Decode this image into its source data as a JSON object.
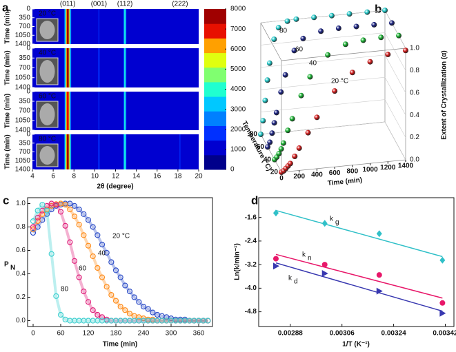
{
  "chart_data": [
    {
      "type": "heatmap",
      "panel": "a",
      "xlabel": "2θ (degree)",
      "ylabel": "Time (min)",
      "xlim": [
        4,
        20
      ],
      "xticks": [
        4,
        6,
        8,
        10,
        12,
        14,
        16,
        18,
        20
      ],
      "ylim": [
        0,
        1400
      ],
      "yticks": [
        0,
        350,
        700,
        1050,
        1400
      ],
      "peaks": {
        "positions": [
          7.4,
          10.4,
          12.9,
          18.2
        ],
        "labels": [
          "(011)",
          "(001)",
          "(112)",
          "(222)"
        ]
      },
      "background": 900,
      "strips": [
        {
          "name": "20 °C",
          "values": [
            7400,
            1500,
            4200,
            1300
          ]
        },
        {
          "name": "40 °C",
          "values": [
            7600,
            1600,
            4000,
            1400
          ]
        },
        {
          "name": "60 °C",
          "values": [
            7200,
            1500,
            3800,
            1300
          ]
        },
        {
          "name": "80 °C",
          "values": [
            7800,
            1700,
            4300,
            1500
          ]
        }
      ],
      "colorbar": {
        "lim": [
          0,
          8000
        ],
        "ticks": [
          0,
          1000,
          2000,
          3000,
          4000,
          5000,
          6000,
          7000,
          8000
        ],
        "colors": [
          "#00008b",
          "#0000d0",
          "#0030ff",
          "#0080ff",
          "#00c8ff",
          "#20ffd0",
          "#80ff70",
          "#e0ff10",
          "#ffa000",
          "#e81000",
          "#a00000"
        ]
      }
    },
    {
      "type": "scatter3d",
      "panel": "b",
      "xlabel": "Time (min)",
      "ylabel": "Temperature (°C)",
      "zlabel": "Extent of Crystallization (α)",
      "xlim": [
        0,
        1400
      ],
      "xticks": [
        0,
        200,
        400,
        600,
        800,
        1000,
        1200,
        1400
      ],
      "ylim": [
        20,
        80
      ],
      "yticks": [
        20,
        40,
        60,
        80
      ],
      "zlim": [
        0,
        1
      ],
      "zticks": [
        {
          "value": 0,
          "label": "0.0"
        },
        0.2,
        0.4,
        0.6,
        0.8,
        {
          "value": 1,
          "label": "1.0"
        }
      ],
      "x": [
        0,
        25,
        50,
        75,
        100,
        150,
        200,
        300,
        400,
        600,
        800,
        1000,
        1200,
        1400
      ],
      "series": [
        {
          "name": "20 °C",
          "y": 20,
          "color": "#d01818",
          "values": [
            0,
            0.01,
            0.03,
            0.05,
            0.07,
            0.13,
            0.2,
            0.33,
            0.46,
            0.68,
            0.83,
            0.91,
            0.96,
            0.98
          ]
        },
        {
          "name": "40",
          "y": 40,
          "color": "#18b030",
          "values": [
            0,
            0.02,
            0.05,
            0.09,
            0.14,
            0.25,
            0.35,
            0.55,
            0.71,
            0.89,
            0.97,
            0.99,
            1,
            1
          ]
        },
        {
          "name": "60",
          "y": 60,
          "color": "#182080",
          "values": [
            0,
            0.04,
            0.12,
            0.21,
            0.3,
            0.48,
            0.63,
            0.84,
            0.94,
            0.99,
            1,
            1,
            1,
            1
          ]
        },
        {
          "name": "80",
          "y": 80,
          "color": "#20c8c8",
          "values": [
            0,
            0.12,
            0.3,
            0.48,
            0.63,
            0.84,
            0.94,
            0.99,
            1,
            1,
            1,
            1,
            1,
            1
          ]
        }
      ]
    },
    {
      "type": "line",
      "panel": "c",
      "xlabel": "Time (min)",
      "ylabel": "P",
      "ylabel_sub": "N",
      "xlim": [
        -12,
        390
      ],
      "xticks": [
        0,
        60,
        120,
        180,
        240,
        300,
        360
      ],
      "ylim": [
        -0.05,
        1.05
      ],
      "yticks": [
        {
          "value": 0,
          "label": "0.0"
        },
        0.2,
        0.4,
        0.6,
        0.8,
        {
          "value": 1,
          "label": "1.0"
        }
      ],
      "x": [
        0,
        10,
        20,
        30,
        40,
        50,
        60,
        70,
        80,
        90,
        100,
        110,
        120,
        130,
        140,
        150,
        160,
        170,
        180,
        190,
        200,
        210,
        220,
        230,
        240,
        250,
        260,
        270,
        280,
        290,
        300,
        310,
        320,
        330,
        340,
        350,
        360,
        370,
        380
      ],
      "series": [
        {
          "name": "20 °C",
          "color": "#3050c8",
          "values": [
            0.75,
            0.8,
            0.86,
            0.91,
            0.95,
            0.98,
            0.99,
            1.0,
            1.0,
            0.98,
            0.95,
            0.91,
            0.86,
            0.8,
            0.73,
            0.65,
            0.58,
            0.5,
            0.43,
            0.37,
            0.3,
            0.25,
            0.2,
            0.16,
            0.12,
            0.1,
            0.07,
            0.05,
            0.04,
            0.03,
            0.02,
            0.01,
            0.01,
            0.01,
            0,
            0,
            0,
            0,
            0
          ]
        },
        {
          "name": "40",
          "color": "#ff8c1a",
          "values": [
            0.78,
            0.85,
            0.91,
            0.95,
            0.98,
            0.995,
            1.0,
            0.99,
            0.95,
            0.89,
            0.82,
            0.73,
            0.64,
            0.55,
            0.45,
            0.37,
            0.29,
            0.22,
            0.17,
            0.12,
            0.09,
            0.06,
            0.04,
            0.03,
            0.02,
            0.01,
            0.01,
            0,
            0,
            0,
            0,
            0,
            0,
            0,
            0,
            0,
            0,
            0,
            0
          ]
        },
        {
          "name": "60",
          "color": "#e0207a",
          "values": [
            0.8,
            0.88,
            0.94,
            0.98,
            1.0,
            0.99,
            0.93,
            0.81,
            0.67,
            0.51,
            0.37,
            0.25,
            0.16,
            0.09,
            0.05,
            0.03,
            0.01,
            0,
            0,
            0,
            0,
            0,
            0,
            0,
            0,
            0,
            0,
            0,
            0,
            0,
            0,
            0,
            0,
            0,
            0,
            0,
            0,
            0,
            0
          ]
        },
        {
          "name": "80",
          "color": "#40d0d0",
          "values": [
            0.85,
            0.94,
            0.99,
            0.94,
            0.57,
            0.21,
            0.05,
            0.01,
            0,
            0,
            0,
            0,
            0,
            0,
            0,
            0,
            0,
            0,
            0,
            0,
            0,
            0,
            0,
            0,
            0,
            0,
            0,
            0,
            0,
            0,
            0,
            0,
            0,
            0,
            0,
            0,
            0,
            0,
            0
          ]
        }
      ]
    },
    {
      "type": "scatter",
      "panel": "d",
      "xlabel": "1/T (K⁻¹)",
      "ylabel": "Ln(k/min⁻¹)",
      "xlim": [
        0.00277,
        0.00345
      ],
      "xticks": [
        0.00288,
        0.00306,
        0.00324,
        0.00342
      ],
      "ylim": [
        -5.3,
        -0.93
      ],
      "yticks": [
        -1.6,
        -2.4,
        -3.2,
        {
          "value": -4,
          "label": "-4.0"
        },
        -4.8
      ],
      "x": [
        0.00283,
        0.003,
        0.00319,
        0.00341
      ],
      "series": [
        {
          "name": "k",
          "subscript": "g",
          "color": "#30c0c8",
          "marker": "diamond",
          "values": [
            -1.45,
            -1.8,
            -2.15,
            -3.05
          ]
        },
        {
          "name": "k",
          "subscript": "n",
          "color": "#e8186a",
          "marker": "circle",
          "values": [
            -3.0,
            -3.2,
            -3.55,
            -4.5
          ]
        },
        {
          "name": "k",
          "subscript": "d",
          "color": "#3838b0",
          "marker": "triangle",
          "values": [
            -3.25,
            -3.5,
            -4.1,
            -4.85
          ]
        }
      ]
    }
  ]
}
